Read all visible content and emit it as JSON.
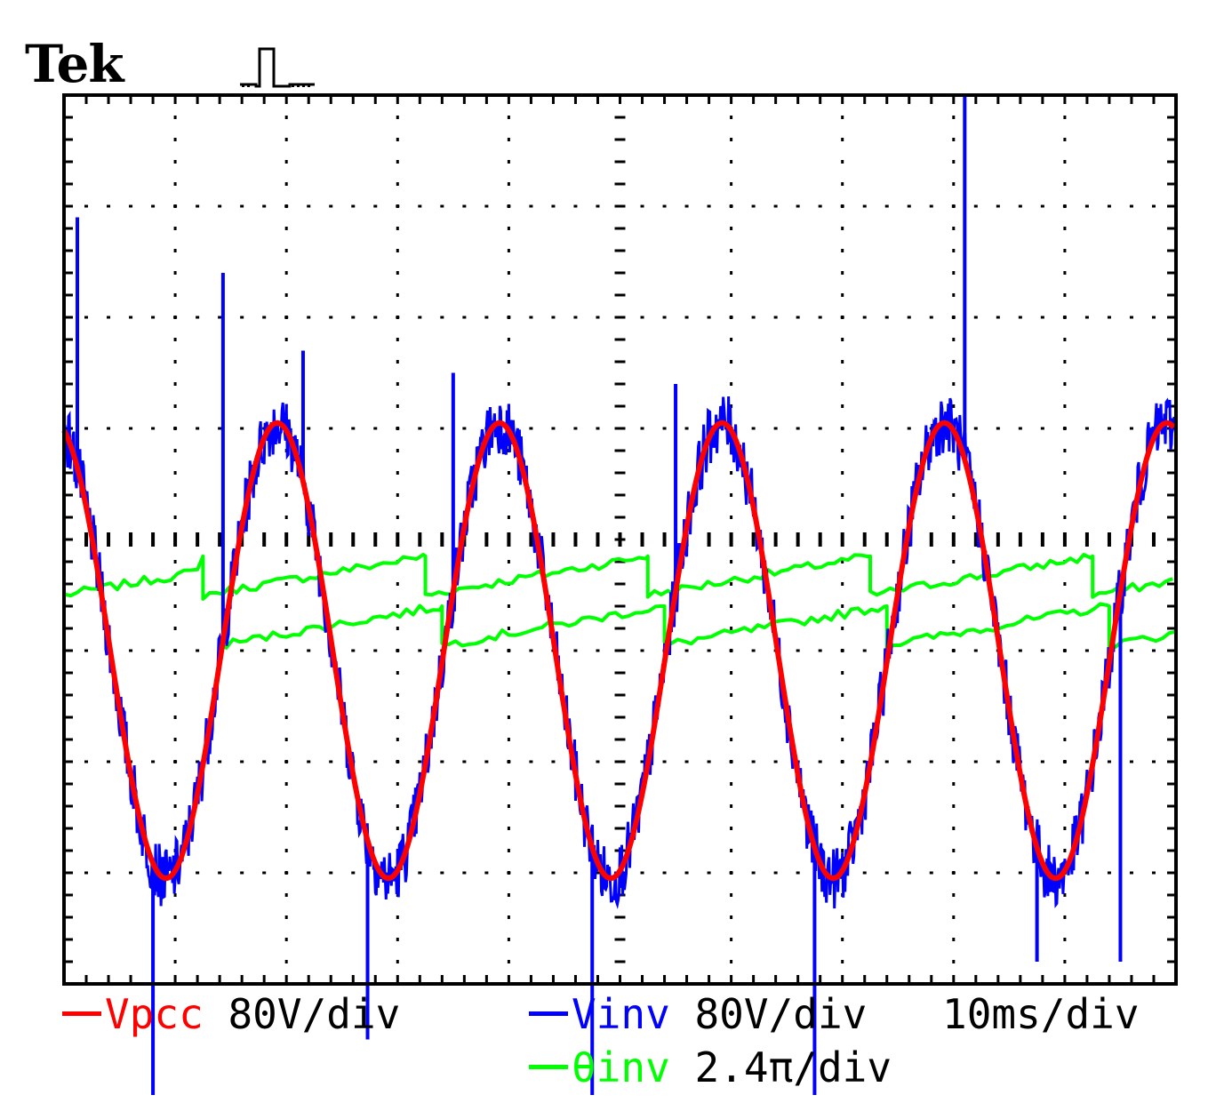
{
  "header": {
    "brand": "Tek"
  },
  "chart_data": {
    "type": "line",
    "title": "",
    "grid": true,
    "divisions": {
      "x": 10,
      "y": 8
    },
    "x_units": "ms",
    "time_scale_ms_per_div": 10,
    "xlim": [
      0,
      100
    ],
    "series": [
      {
        "name": "Vpcc",
        "color": "#ff0000",
        "scale_label": "80V/div",
        "units": "V",
        "volts_per_div": 80,
        "waveform": "sine",
        "frequency_hz": 50,
        "offset_div": -1.0,
        "amplitude_div": 2.05,
        "phase_deg": 105,
        "peaks_ms": [
          18,
          38,
          58,
          78,
          98
        ],
        "troughs_ms": [
          8,
          28,
          48,
          68,
          88
        ]
      },
      {
        "name": "Vinv",
        "color": "#0000ff",
        "scale_label": "80V/div",
        "units": "V",
        "volts_per_div": 80,
        "waveform": "noisy sine following Vpcc",
        "frequency_hz": 50,
        "offset_div": -1.0,
        "amplitude_div": 2.05,
        "spikes": [
          {
            "t_ms": 1.2,
            "div": 2.9
          },
          {
            "t_ms": 8.0,
            "div": -5.0
          },
          {
            "t_ms": 14.3,
            "div": 2.4
          },
          {
            "t_ms": 21.5,
            "div": 1.7
          },
          {
            "t_ms": 27.3,
            "div": -4.5
          },
          {
            "t_ms": 35.0,
            "div": 1.5
          },
          {
            "t_ms": 47.5,
            "div": -5.0
          },
          {
            "t_ms": 55.0,
            "div": 1.4
          },
          {
            "t_ms": 67.5,
            "div": -5.0
          },
          {
            "t_ms": 81.0,
            "div": 4.0
          },
          {
            "t_ms": 87.5,
            "div": -3.8
          },
          {
            "t_ms": 95.0,
            "div": -3.8
          }
        ]
      },
      {
        "name": "θinv",
        "color": "#00ff00",
        "scale_label": "2.4π/div",
        "units": "rad",
        "waveform": "two interleaved sawtooth ramps",
        "ramp_A": {
          "reset_ms": [
            0,
            12.5,
            32.5,
            52.5,
            72.5,
            92.5
          ],
          "low_div": -0.5,
          "high_div": -0.15
        },
        "ramp_B": {
          "reset_ms": [
            14.0,
            34.0,
            54.0,
            74.0,
            94.0
          ],
          "low_div": -0.95,
          "high_div": -0.6
        }
      }
    ],
    "legend": [
      {
        "label": "Vpcc",
        "scale": "80V/div"
      },
      {
        "label": "Vinv",
        "scale": "80V/div"
      },
      {
        "label": "θinv",
        "scale": "2.4π/div"
      }
    ],
    "time_label": "10ms/div"
  }
}
